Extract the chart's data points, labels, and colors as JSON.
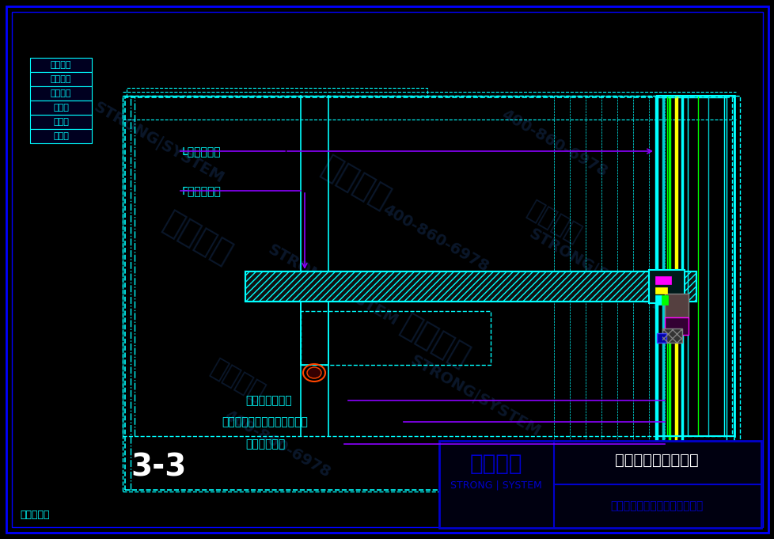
{
  "bg_color": "#000000",
  "border_color": "#0000FF",
  "cyan_color": "#00FFFF",
  "purple_color": "#8B00FF",
  "blue_color": "#0000CD",
  "green_color": "#00FF00",
  "yellow_color": "#FFFF00",
  "white_color": "#FFFFFF",
  "gray_color": "#808080",
  "magenta_color": "#FF00FF",
  "red_color": "#FF4500",
  "title_text": "阿那亚雾灵山图书馆",
  "company_text": "西创金属科技（江苏）有限公司",
  "logo_text": "西创系统",
  "logo_sub": "STRONG | SYSTEM",
  "label_L": "L型精制钢柱",
  "label_F": "F型精制钢柱",
  "label_alu": "铝合金型材端头",
  "label_bolt": "公母螺栓（专利、连续栓接）",
  "label_rubber": "橡胶隔热垫块",
  "section_num": "3-3",
  "patent_text": "专利产品！",
  "features": [
    "安全防火",
    "环保节能",
    "超级防腐",
    "大跨度",
    "大通透",
    "更纤细"
  ],
  "watermark_texts": [
    "西创系统",
    "STRONG|SYSTEM",
    "400-860-6978"
  ]
}
